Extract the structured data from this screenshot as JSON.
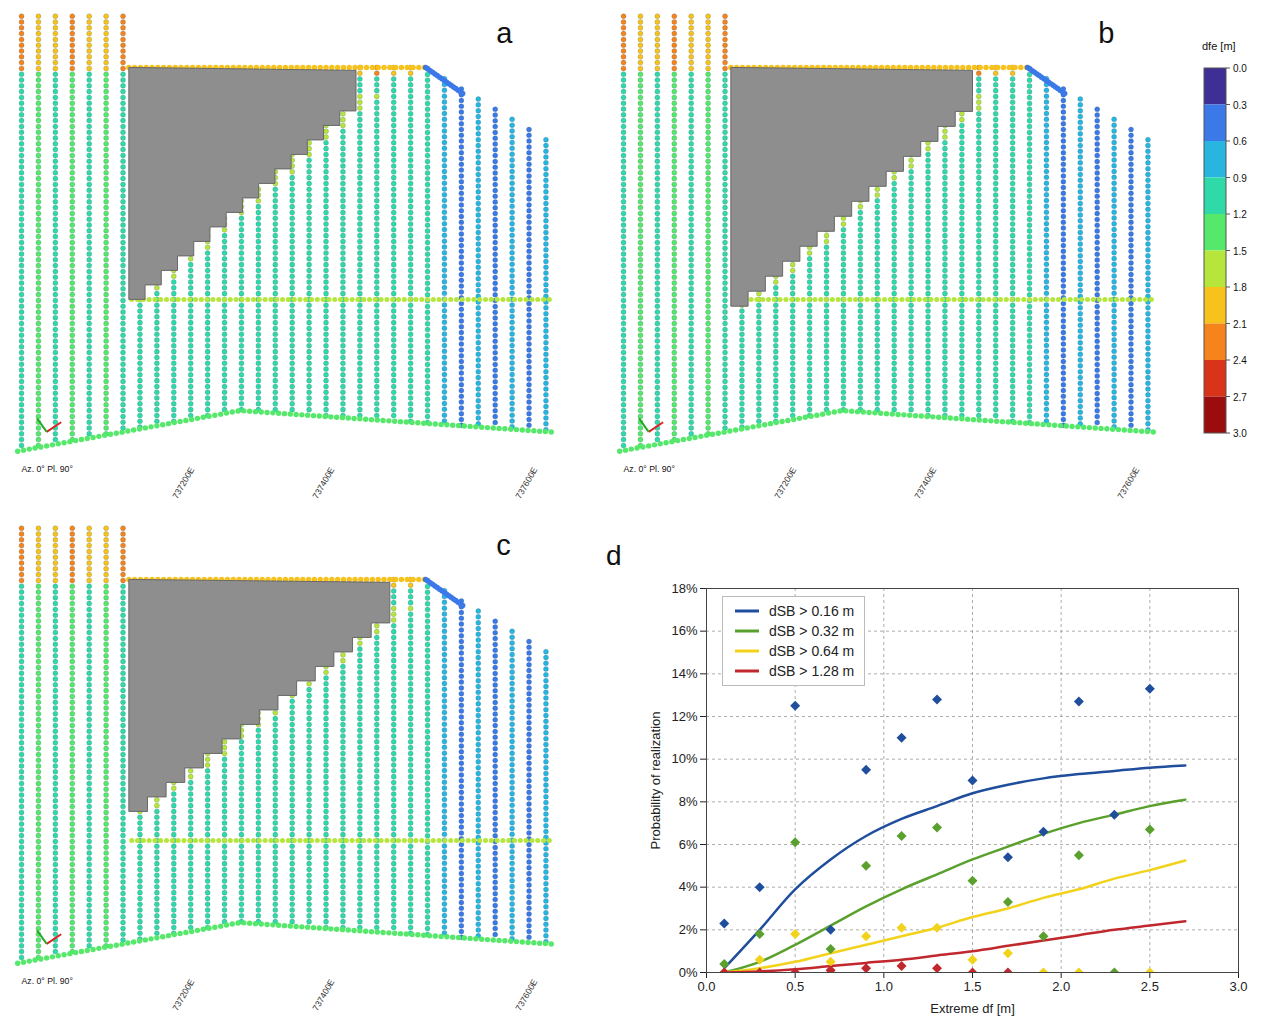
{
  "maps": [
    {
      "letter": "a",
      "orientation_label": "Az. 0° Pl. 90°",
      "easting_labels": [
        "737200E",
        "737400E",
        "737600E"
      ]
    },
    {
      "letter": "b",
      "orientation_label": "Az. 0° Pl. 90°",
      "easting_labels": [
        "737200E",
        "737400E",
        "737600E"
      ]
    },
    {
      "letter": "c",
      "orientation_label": "Az. 0° Pl. 90°",
      "easting_labels": [
        "737200E",
        "737400E",
        "737600E"
      ]
    }
  ],
  "colorbar": {
    "title": "dfe [m]",
    "range": [
      0,
      3
    ],
    "ticks": [
      {
        "value": 0,
        "label": "0.0"
      },
      {
        "value": 0.3,
        "label": "0.3"
      },
      {
        "value": 0.6,
        "label": "0.6"
      },
      {
        "value": 0.9,
        "label": "0.9"
      },
      {
        "value": 1.2,
        "label": "1.2"
      },
      {
        "value": 1.5,
        "label": "1.5"
      },
      {
        "value": 1.8,
        "label": "1.8"
      },
      {
        "value": 2.1,
        "label": "2.1"
      },
      {
        "value": 2.4,
        "label": "2.4"
      },
      {
        "value": 2.7,
        "label": "2.7"
      },
      {
        "value": 3,
        "label": "3.0"
      }
    ],
    "colors": [
      "#3d2f96",
      "#3b78e8",
      "#28b6e0",
      "#30d9a8",
      "#55e86a",
      "#b6e63c",
      "#f7c21c",
      "#f5841c",
      "#d9341a",
      "#9b0d0d"
    ]
  },
  "chart_data": {
    "letter": "d",
    "type": "line",
    "xlabel": "Extreme df [m]",
    "ylabel": "Probability of realization",
    "xlim": [
      0,
      3
    ],
    "ylim": [
      0,
      18
    ],
    "xticks": [
      {
        "value": 0,
        "label": "0.0"
      },
      {
        "value": 0.5,
        "label": "0.5"
      },
      {
        "value": 1,
        "label": "1.0"
      },
      {
        "value": 1.5,
        "label": "1.5"
      },
      {
        "value": 2,
        "label": "2.0"
      },
      {
        "value": 2.5,
        "label": "2.5"
      },
      {
        "value": 3,
        "label": "3.0"
      }
    ],
    "yticks": [
      {
        "value": 0,
        "label": "0%"
      },
      {
        "value": 2,
        "label": "2%"
      },
      {
        "value": 4,
        "label": "4%"
      },
      {
        "value": 6,
        "label": "6%"
      },
      {
        "value": 8,
        "label": "8%"
      },
      {
        "value": 10,
        "label": "10%"
      },
      {
        "value": 12,
        "label": "12%"
      },
      {
        "value": 14,
        "label": "14%"
      },
      {
        "value": 16,
        "label": "16%"
      },
      {
        "value": 18,
        "label": "18%"
      }
    ],
    "grid": true,
    "legend": "upper left",
    "x": [
      0.1,
      0.3,
      0.5,
      0.7,
      0.9,
      1.1,
      1.3,
      1.5,
      1.7,
      1.9,
      2.1,
      2.3,
      2.5,
      2.7
    ],
    "point_x": [
      0.1,
      0.3,
      0.5,
      0.7,
      0.9,
      1.1,
      1.3,
      1.5,
      1.7,
      1.9,
      2.1,
      2.3,
      2.5
    ],
    "series": [
      {
        "name": "dSB > 0.16 m",
        "color": "#1f4e9c",
        "line_style": "solid",
        "marker": "diamond",
        "values": [
          0.2,
          2.0,
          3.9,
          5.3,
          6.4,
          7.2,
          7.8,
          8.4,
          8.8,
          9.1,
          9.3,
          9.45,
          9.6,
          9.7
        ],
        "point_values": [
          2.3,
          4.0,
          12.5,
          2.0,
          9.5,
          11.0,
          12.8,
          9.0,
          5.4,
          6.6,
          12.7,
          7.4,
          13.3
        ]
      },
      {
        "name": "dSB > 0.32 m",
        "color": "#5aa02c",
        "line_style": "solid",
        "marker": "diamond",
        "values": [
          0.0,
          0.5,
          1.3,
          2.2,
          3.1,
          3.9,
          4.6,
          5.3,
          5.9,
          6.5,
          7.0,
          7.4,
          7.8,
          8.1
        ],
        "point_values": [
          0.4,
          1.8,
          6.1,
          1.1,
          5.0,
          6.4,
          6.8,
          4.3,
          3.3,
          1.7,
          5.5,
          0.0,
          6.7
        ]
      },
      {
        "name": "dSB > 0.64 m",
        "color": "#f2d21b",
        "line_style": "solid",
        "marker": "diamond",
        "values": [
          0.0,
          0.2,
          0.5,
          0.9,
          1.3,
          1.7,
          2.1,
          2.6,
          3.0,
          3.5,
          3.9,
          4.4,
          4.8,
          5.25
        ],
        "point_values": [
          0.0,
          0.6,
          1.8,
          0.5,
          1.7,
          2.1,
          2.1,
          0.6,
          0.9,
          0.0,
          0.0,
          null,
          0.0
        ]
      },
      {
        "name": "dSB > 1.28 m",
        "color": "#c0282d",
        "line_style": "solid",
        "marker": "diamond",
        "values": [
          0.0,
          0.05,
          0.15,
          0.3,
          0.45,
          0.6,
          0.8,
          1.0,
          1.25,
          1.5,
          1.75,
          2.0,
          2.2,
          2.4
        ],
        "point_values": [
          0.0,
          0.0,
          0.0,
          0.1,
          0.2,
          0.3,
          0.2,
          0.0,
          0.0,
          null,
          null,
          null,
          null
        ]
      }
    ]
  }
}
